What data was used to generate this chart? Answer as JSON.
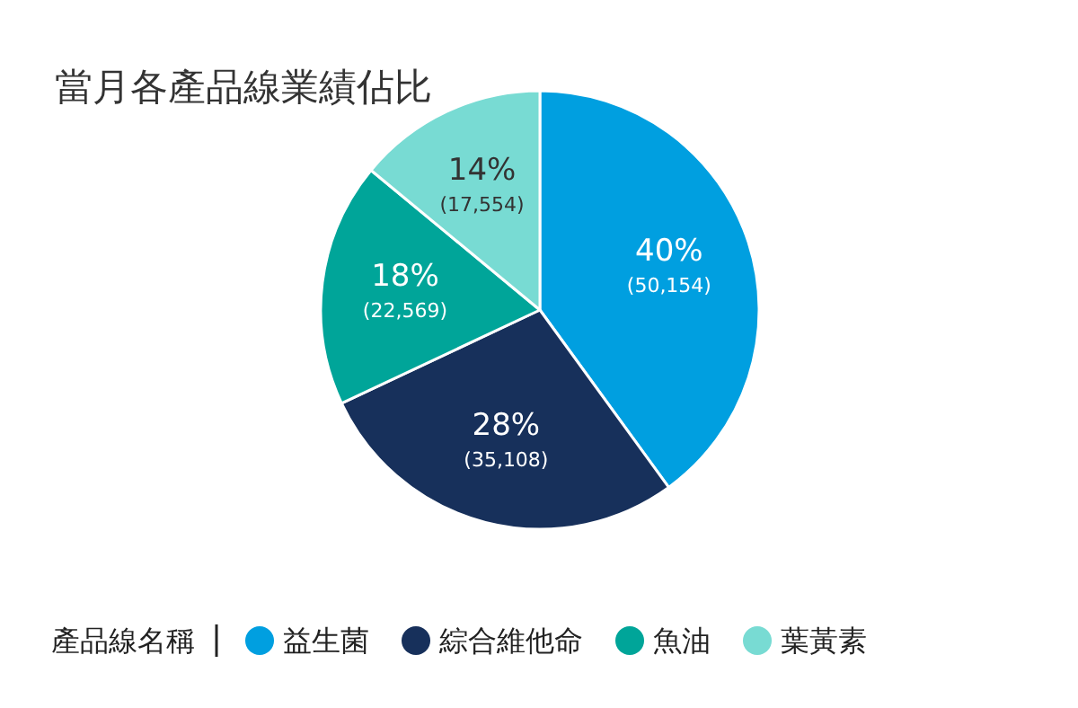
{
  "chart_data": {
    "type": "pie",
    "title": "當月各產品線業績佔比",
    "legend_title": "產品線名稱",
    "categories": [
      "益生菌",
      "綜合維他命",
      "魚油",
      "葉黃素"
    ],
    "values": [
      50154,
      35108,
      22569,
      17554
    ],
    "colors": [
      "#009fe0",
      "#17305b",
      "#00a599",
      "#78dbd3"
    ],
    "value_labels": [
      "40%\n(50,154)",
      "28%\n(35,108)",
      "18%\n(22,569)",
      "14%\n(17,554)"
    ],
    "legend": "bottom"
  }
}
